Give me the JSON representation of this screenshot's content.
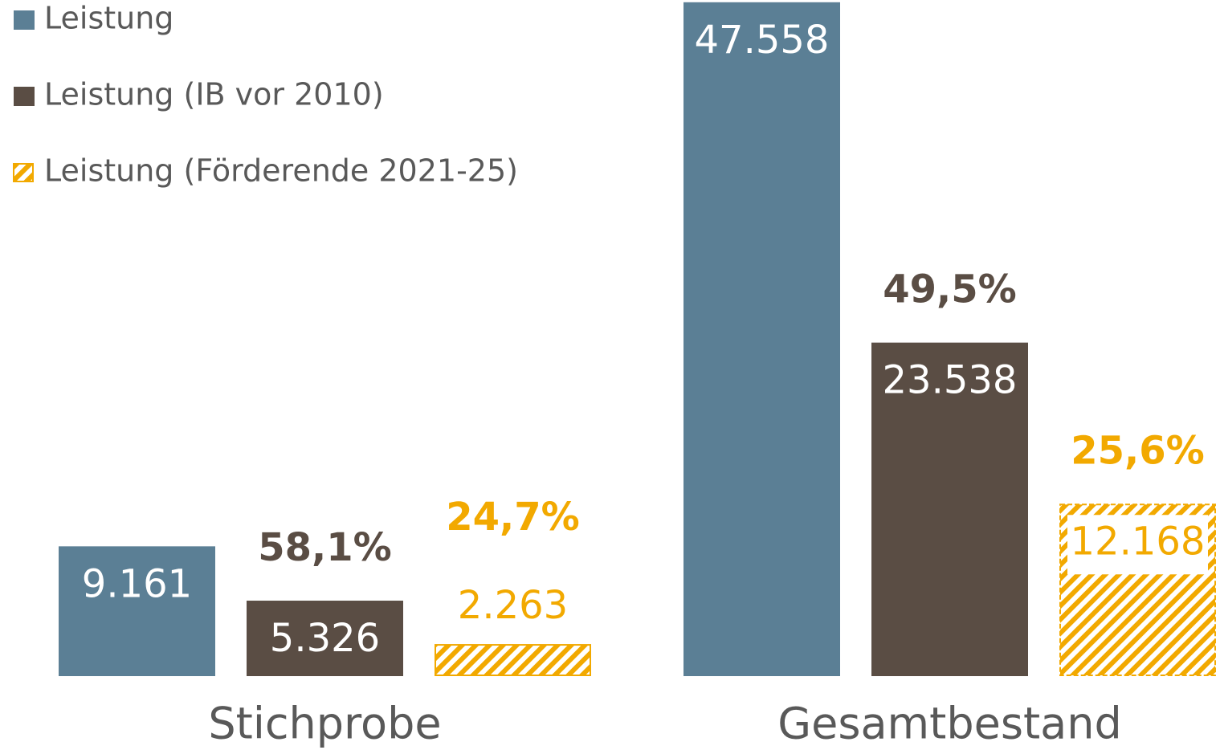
{
  "chart_data": {
    "type": "bar",
    "categories": [
      "Stichprobe",
      "Gesamtbestand"
    ],
    "series": [
      {
        "name": "Leistung",
        "color": "#5b7f95",
        "values": [
          9161,
          47558
        ],
        "value_labels": [
          "9.161",
          "47.558"
        ]
      },
      {
        "name": "Leistung (IB vor 2010)",
        "color": "#5a4d44",
        "values": [
          5326,
          23538
        ],
        "value_labels": [
          "5.326",
          "23.538"
        ],
        "share_labels": [
          "58,1%",
          "49,5%"
        ]
      },
      {
        "name": "Leistung (Förderende 2021-25)",
        "color": "#f2a900",
        "hatched": true,
        "values": [
          2263,
          12168
        ],
        "value_labels": [
          "2.263",
          "12.168"
        ],
        "share_labels": [
          "24,7%",
          "25,6%"
        ]
      }
    ],
    "ylim": [
      0,
      48000
    ],
    "legend": "top-left"
  }
}
